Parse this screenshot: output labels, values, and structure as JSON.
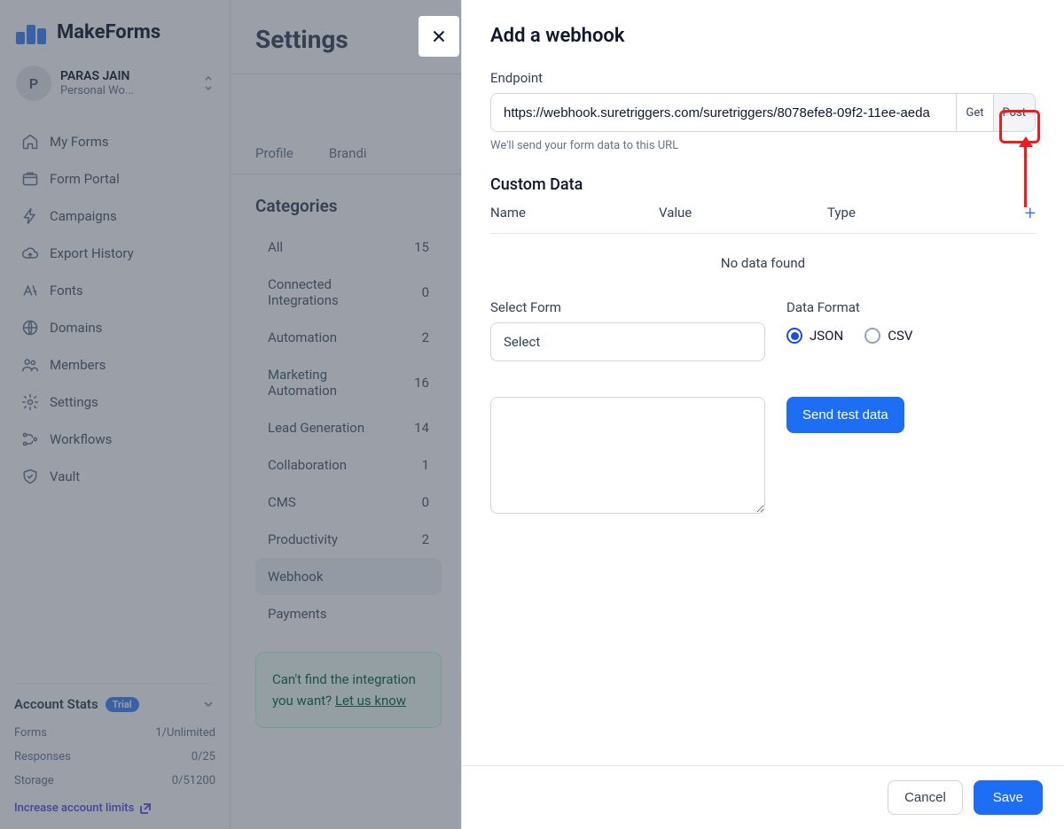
{
  "brand": "MakeForms",
  "user": {
    "initial": "P",
    "name": "PARAS JAIN",
    "workspace": "Personal Wo..."
  },
  "nav": [
    {
      "label": "My Forms",
      "icon": "home"
    },
    {
      "label": "Form Portal",
      "icon": "portal"
    },
    {
      "label": "Campaigns",
      "icon": "bolt"
    },
    {
      "label": "Export History",
      "icon": "cloud"
    },
    {
      "label": "Fonts",
      "icon": "font"
    },
    {
      "label": "Domains",
      "icon": "globe"
    },
    {
      "label": "Members",
      "icon": "users"
    },
    {
      "label": "Settings",
      "icon": "gear"
    },
    {
      "label": "Workflows",
      "icon": "flow"
    },
    {
      "label": "Vault",
      "icon": "shield"
    }
  ],
  "stats": {
    "title": "Account Stats",
    "pill": "Trial",
    "rows": [
      {
        "k": "Forms",
        "v": "1/Unlimited"
      },
      {
        "k": "Responses",
        "v": "0/25"
      },
      {
        "k": "Storage",
        "v": "0/51200"
      }
    ],
    "link": "Increase account limits"
  },
  "page": {
    "title": "Settings",
    "tabs": [
      "Profile",
      "Brandi"
    ]
  },
  "categories": {
    "title": "Categories",
    "items": [
      {
        "label": "All",
        "count": "15"
      },
      {
        "label": "Connected Integrations",
        "count": "0"
      },
      {
        "label": "Automation",
        "count": "2"
      },
      {
        "label": "Marketing Automation",
        "count": "16"
      },
      {
        "label": "Lead Generation",
        "count": "14"
      },
      {
        "label": "Collaboration",
        "count": "1"
      },
      {
        "label": "CMS",
        "count": "0"
      },
      {
        "label": "Productivity",
        "count": "2"
      },
      {
        "label": "Webhook",
        "count": ""
      },
      {
        "label": "Payments",
        "count": ""
      }
    ],
    "activeIndex": 8,
    "callout_a": "Can't find the integration you want? ",
    "callout_b": "Let us know"
  },
  "modal": {
    "title": "Add a webhook",
    "endpoint_label": "Endpoint",
    "endpoint_value": "https://webhook.suretriggers.com/suretriggers/8078efe8-09f2-11ee-aeda",
    "method_get": "Get",
    "method_post": "Post",
    "helper": "We'll send your form data to this URL",
    "custom_title": "Custom Data",
    "cols": {
      "name": "Name",
      "value": "Value",
      "type": "Type"
    },
    "no_data": "No data found",
    "select_form_label": "Select Form",
    "select_placeholder": "Select",
    "data_format_label": "Data Format",
    "json": "JSON",
    "csv": "CSV",
    "send_test": "Send test data",
    "cancel": "Cancel",
    "save": "Save"
  }
}
